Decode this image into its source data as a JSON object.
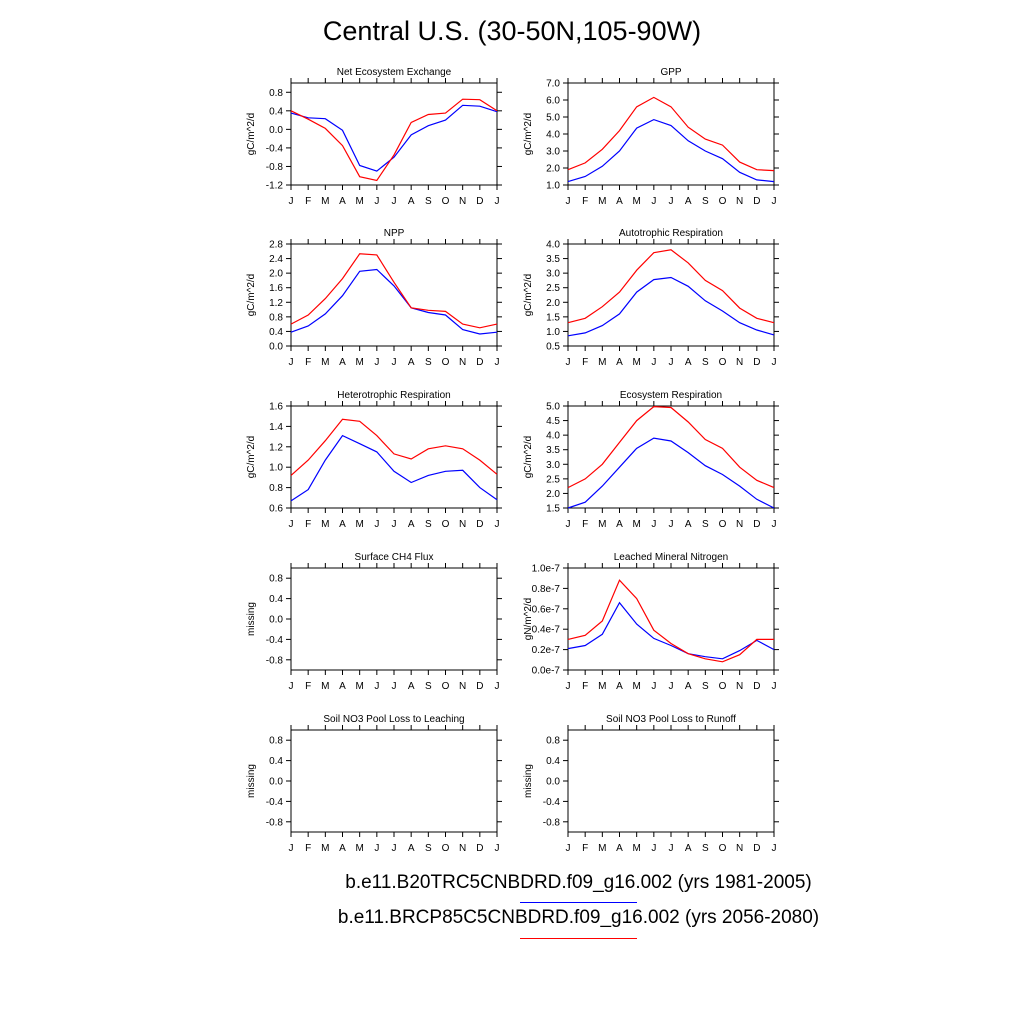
{
  "page": {
    "title": "Central U.S. (30-50N,105-90W)"
  },
  "legend": {
    "entries": [
      {
        "label": "b.e11.B20TRC5CNBDRD.f09_g16.002 (yrs 1981-2005)",
        "color": "#0000ff"
      },
      {
        "label": "b.e11.BRCP85C5CNBDRD.f09_g16.002 (yrs 2056-2080)",
        "color": "#ff0000"
      }
    ]
  },
  "chart_data": [
    {
      "type": "line",
      "title": "Net Ecosystem Exchange",
      "ylabel": "gC/m^2/d",
      "xlabel": "",
      "categories": [
        "J",
        "F",
        "M",
        "A",
        "M",
        "J",
        "J",
        "A",
        "S",
        "O",
        "N",
        "D",
        "J"
      ],
      "ylim": [
        -1.2,
        1.0
      ],
      "yticks": [
        0.8,
        0.4,
        0.0,
        -0.4,
        -0.8,
        -1.2
      ],
      "ytick_labels": [
        "0.8",
        "0.4",
        "0.0",
        "-0.4",
        "-0.8",
        "-1.2"
      ],
      "series": [
        {
          "color": "#0000ff",
          "values": [
            0.35,
            0.25,
            0.23,
            -0.02,
            -0.78,
            -0.9,
            -0.6,
            -0.12,
            0.08,
            0.2,
            0.52,
            0.5,
            0.38
          ]
        },
        {
          "color": "#ff0000",
          "values": [
            0.4,
            0.22,
            0.02,
            -0.35,
            -1.02,
            -1.1,
            -0.55,
            0.15,
            0.32,
            0.35,
            0.65,
            0.64,
            0.4
          ]
        }
      ]
    },
    {
      "type": "line",
      "title": "GPP",
      "ylabel": "gC/m^2/d",
      "xlabel": "",
      "categories": [
        "J",
        "F",
        "M",
        "A",
        "M",
        "J",
        "J",
        "A",
        "S",
        "O",
        "N",
        "D",
        "J"
      ],
      "ylim": [
        1.0,
        7.0
      ],
      "yticks": [
        7.0,
        6.0,
        5.0,
        4.0,
        3.0,
        2.0,
        1.0
      ],
      "ytick_labels": [
        "7.0",
        "6.0",
        "5.0",
        "4.0",
        "3.0",
        "2.0",
        "1.0"
      ],
      "series": [
        {
          "color": "#0000ff",
          "values": [
            1.2,
            1.5,
            2.1,
            3.0,
            4.35,
            4.85,
            4.5,
            3.6,
            3.0,
            2.55,
            1.75,
            1.3,
            1.2
          ]
        },
        {
          "color": "#ff0000",
          "values": [
            1.9,
            2.3,
            3.1,
            4.2,
            5.6,
            6.15,
            5.6,
            4.4,
            3.7,
            3.35,
            2.35,
            1.9,
            1.85
          ]
        }
      ]
    },
    {
      "type": "line",
      "title": "NPP",
      "ylabel": "gC/m^2/d",
      "xlabel": "",
      "categories": [
        "J",
        "F",
        "M",
        "A",
        "M",
        "J",
        "J",
        "A",
        "S",
        "O",
        "N",
        "D",
        "J"
      ],
      "ylim": [
        0.0,
        2.8
      ],
      "yticks": [
        2.8,
        2.4,
        2.0,
        1.6,
        1.2,
        0.8,
        0.4,
        0.0
      ],
      "ytick_labels": [
        "2.8",
        "2.4",
        "2.0",
        "1.6",
        "1.2",
        "0.8",
        "0.4",
        "0.0"
      ],
      "series": [
        {
          "color": "#0000ff",
          "values": [
            0.38,
            0.55,
            0.88,
            1.38,
            2.05,
            2.1,
            1.65,
            1.05,
            0.92,
            0.85,
            0.45,
            0.33,
            0.38
          ]
        },
        {
          "color": "#ff0000",
          "values": [
            0.6,
            0.85,
            1.3,
            1.85,
            2.53,
            2.5,
            1.75,
            1.05,
            0.98,
            0.95,
            0.6,
            0.5,
            0.6
          ]
        }
      ]
    },
    {
      "type": "line",
      "title": "Autotrophic Respiration",
      "ylabel": "gC/m^2/d",
      "xlabel": "",
      "categories": [
        "J",
        "F",
        "M",
        "A",
        "M",
        "J",
        "J",
        "A",
        "S",
        "O",
        "N",
        "D",
        "J"
      ],
      "ylim": [
        0.5,
        4.0
      ],
      "yticks": [
        4.0,
        3.5,
        3.0,
        2.5,
        2.0,
        1.5,
        1.0,
        0.5
      ],
      "ytick_labels": [
        "4.0",
        "3.5",
        "3.0",
        "2.5",
        "2.0",
        "1.5",
        "1.0",
        "0.5"
      ],
      "series": [
        {
          "color": "#0000ff",
          "values": [
            0.85,
            0.95,
            1.2,
            1.6,
            2.35,
            2.78,
            2.85,
            2.55,
            2.05,
            1.7,
            1.3,
            1.05,
            0.88
          ]
        },
        {
          "color": "#ff0000",
          "values": [
            1.3,
            1.45,
            1.85,
            2.35,
            3.1,
            3.7,
            3.8,
            3.35,
            2.75,
            2.4,
            1.8,
            1.45,
            1.3
          ]
        }
      ]
    },
    {
      "type": "line",
      "title": "Heterotrophic Respiration",
      "ylabel": "gC/m^2/d",
      "xlabel": "",
      "categories": [
        "J",
        "F",
        "M",
        "A",
        "M",
        "J",
        "J",
        "A",
        "S",
        "O",
        "N",
        "D",
        "J"
      ],
      "ylim": [
        0.6,
        1.6
      ],
      "yticks": [
        1.6,
        1.4,
        1.2,
        1.0,
        0.8,
        0.6
      ],
      "ytick_labels": [
        "1.6",
        "1.4",
        "1.2",
        "1.0",
        "0.8",
        "0.6"
      ],
      "series": [
        {
          "color": "#0000ff",
          "values": [
            0.67,
            0.78,
            1.07,
            1.31,
            1.23,
            1.15,
            0.96,
            0.85,
            0.92,
            0.96,
            0.97,
            0.8,
            0.68
          ]
        },
        {
          "color": "#ff0000",
          "values": [
            0.92,
            1.07,
            1.26,
            1.47,
            1.45,
            1.31,
            1.13,
            1.08,
            1.18,
            1.21,
            1.18,
            1.07,
            0.93
          ]
        }
      ]
    },
    {
      "type": "line",
      "title": "Ecosystem Respiration",
      "ylabel": "gC/m^2/d",
      "xlabel": "",
      "categories": [
        "J",
        "F",
        "M",
        "A",
        "M",
        "J",
        "J",
        "A",
        "S",
        "O",
        "N",
        "D",
        "J"
      ],
      "ylim": [
        1.5,
        5.0
      ],
      "yticks": [
        5.0,
        4.5,
        4.0,
        3.5,
        3.0,
        2.5,
        2.0,
        1.5
      ],
      "ytick_labels": [
        "5.0",
        "4.5",
        "4.0",
        "3.5",
        "3.0",
        "2.5",
        "2.0",
        "1.5"
      ],
      "series": [
        {
          "color": "#0000ff",
          "values": [
            1.5,
            1.7,
            2.25,
            2.9,
            3.55,
            3.9,
            3.8,
            3.4,
            2.95,
            2.65,
            2.25,
            1.8,
            1.5
          ]
        },
        {
          "color": "#ff0000",
          "values": [
            2.2,
            2.5,
            3.0,
            3.75,
            4.5,
            4.98,
            4.95,
            4.45,
            3.85,
            3.55,
            2.9,
            2.45,
            2.2
          ]
        }
      ]
    },
    {
      "type": "line",
      "title": "Surface CH4 Flux",
      "ylabel": "missing",
      "xlabel": "",
      "categories": [
        "J",
        "F",
        "M",
        "A",
        "M",
        "J",
        "J",
        "A",
        "S",
        "O",
        "N",
        "D",
        "J"
      ],
      "ylim": [
        -1.0,
        1.0
      ],
      "yticks": [
        0.8,
        0.4,
        0.0,
        -0.4,
        -0.8
      ],
      "ytick_labels": [
        "0.8",
        "0.4",
        "0.0",
        "-0.4",
        "-0.8"
      ],
      "series": []
    },
    {
      "type": "line",
      "title": "Leached Mineral Nitrogen",
      "ylabel": "gN/m^2/d",
      "xlabel": "",
      "categories": [
        "J",
        "F",
        "M",
        "A",
        "M",
        "J",
        "J",
        "A",
        "S",
        "O",
        "N",
        "D",
        "J"
      ],
      "ylim": [
        0.0,
        1e-07
      ],
      "yticks": [
        1e-07,
        8e-08,
        6e-08,
        4e-08,
        2e-08,
        0.0
      ],
      "ytick_labels": [
        "1.0e-7",
        "0.8e-7",
        "0.6e-7",
        "0.4e-7",
        "0.2e-7",
        "0.0e-7"
      ],
      "series": [
        {
          "color": "#0000ff",
          "values": [
            2.1e-08,
            2.4e-08,
            3.5e-08,
            6.6e-08,
            4.5e-08,
            3.1e-08,
            2.4e-08,
            1.6e-08,
            1.3e-08,
            1.1e-08,
            1.9e-08,
            2.9e-08,
            2e-08
          ]
        },
        {
          "color": "#ff0000",
          "values": [
            3e-08,
            3.4e-08,
            4.8e-08,
            8.8e-08,
            7e-08,
            3.9e-08,
            2.6e-08,
            1.6e-08,
            1.1e-08,
            8e-09,
            1.5e-08,
            3e-08,
            3e-08
          ]
        }
      ]
    },
    {
      "type": "line",
      "title": "Soil NO3 Pool Loss to Leaching",
      "ylabel": "missing",
      "xlabel": "",
      "categories": [
        "J",
        "F",
        "M",
        "A",
        "M",
        "J",
        "J",
        "A",
        "S",
        "O",
        "N",
        "D",
        "J"
      ],
      "ylim": [
        -1.0,
        1.0
      ],
      "yticks": [
        0.8,
        0.4,
        0.0,
        -0.4,
        -0.8
      ],
      "ytick_labels": [
        "0.8",
        "0.4",
        "0.0",
        "-0.4",
        "-0.8"
      ],
      "series": []
    },
    {
      "type": "line",
      "title": "Soil NO3 Pool Loss to Runoff",
      "ylabel": "missing",
      "xlabel": "",
      "categories": [
        "J",
        "F",
        "M",
        "A",
        "M",
        "J",
        "J",
        "A",
        "S",
        "O",
        "N",
        "D",
        "J"
      ],
      "ylim": [
        -1.0,
        1.0
      ],
      "yticks": [
        0.8,
        0.4,
        0.0,
        -0.4,
        -0.8
      ],
      "ytick_labels": [
        "0.8",
        "0.4",
        "0.0",
        "-0.4",
        "-0.8"
      ],
      "series": []
    }
  ]
}
